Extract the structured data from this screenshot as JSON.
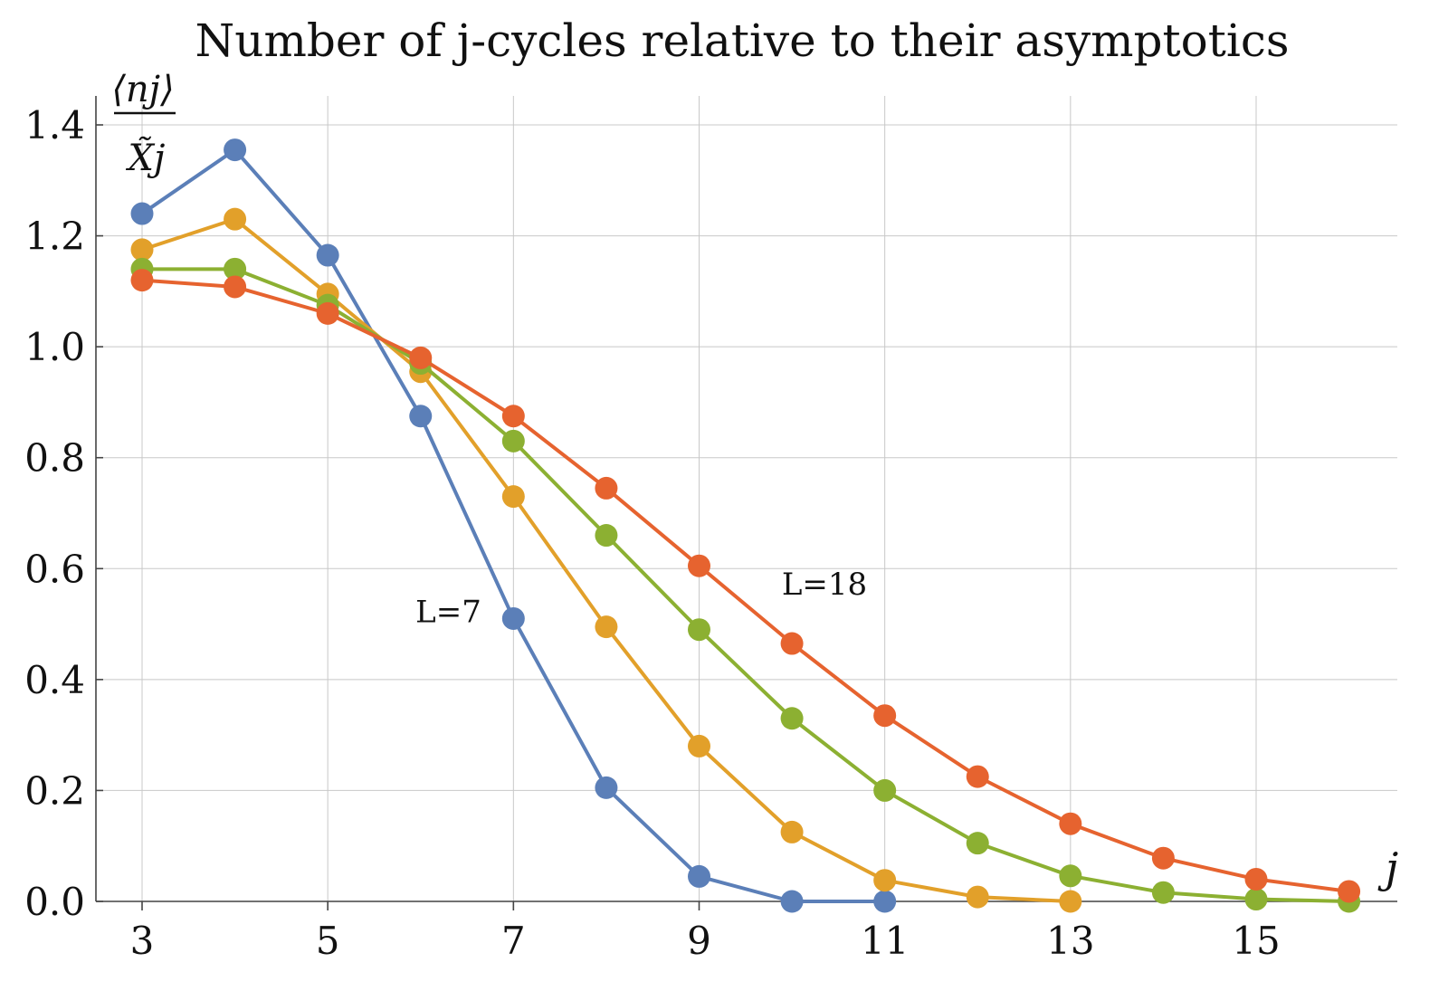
{
  "chart_data": {
    "type": "line",
    "title": "Number of j-cycles relative to their asymptotics",
    "xlabel": "j",
    "ylabel": "⟨nj⟩ / X̃j",
    "ylabel_parts": {
      "numerator": "⟨nj⟩",
      "denominator": "X̃j"
    },
    "xlim": [
      2.5,
      16.5
    ],
    "ylim": [
      0,
      1.45
    ],
    "x_ticks": [
      3,
      5,
      7,
      9,
      11,
      13,
      15
    ],
    "x_tick_labels": [
      "3",
      "5",
      "7",
      "9",
      "11",
      "13",
      "15"
    ],
    "y_ticks": [
      0.0,
      0.2,
      0.4,
      0.6,
      0.8,
      1.0,
      1.2,
      1.4
    ],
    "y_tick_labels": [
      "0.0",
      "0.2",
      "0.4",
      "0.6",
      "0.8",
      "1.0",
      "1.2",
      "1.4"
    ],
    "grid": true,
    "series": [
      {
        "color": "#5b7fb8",
        "x": [
          3,
          4,
          5,
          6,
          7,
          8,
          9,
          10,
          11
        ],
        "values": [
          1.24,
          1.355,
          1.165,
          0.875,
          0.51,
          0.205,
          0.045,
          0.0,
          0.0
        ]
      },
      {
        "color": "#e2a02a",
        "x": [
          3,
          4,
          5,
          6,
          7,
          8,
          9,
          10,
          11,
          12,
          13
        ],
        "values": [
          1.175,
          1.23,
          1.095,
          0.955,
          0.73,
          0.495,
          0.28,
          0.125,
          0.038,
          0.008,
          0.0
        ]
      },
      {
        "color": "#8cb032",
        "x": [
          3,
          4,
          5,
          6,
          7,
          8,
          9,
          10,
          11,
          12,
          13,
          14,
          15,
          16
        ],
        "values": [
          1.14,
          1.14,
          1.075,
          0.97,
          0.83,
          0.66,
          0.49,
          0.33,
          0.2,
          0.105,
          0.046,
          0.016,
          0.004,
          0.0
        ]
      },
      {
        "color": "#e6632f",
        "x": [
          3,
          4,
          5,
          6,
          7,
          8,
          9,
          10,
          11,
          12,
          13,
          14,
          15,
          16
        ],
        "values": [
          1.12,
          1.108,
          1.06,
          0.98,
          0.875,
          0.745,
          0.605,
          0.465,
          0.335,
          0.225,
          0.14,
          0.078,
          0.04,
          0.018
        ]
      }
    ],
    "annotations": [
      {
        "text": "L=7",
        "x": 6.3,
        "y": 0.5
      },
      {
        "text": "L=18",
        "x": 10.35,
        "y": 0.55
      }
    ]
  }
}
